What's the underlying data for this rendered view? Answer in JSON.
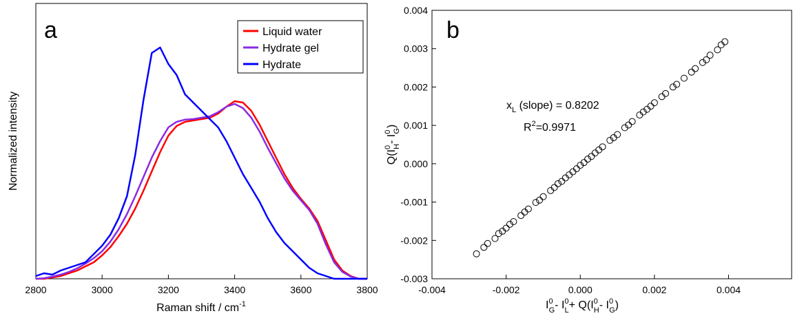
{
  "chart_data": [
    {
      "type": "line",
      "label": "a",
      "xlabel": [
        "Raman shift  /  cm",
        "-1"
      ],
      "ylabel": "Normalized intensity",
      "x": [
        2800,
        2825,
        2850,
        2875,
        2900,
        2925,
        2950,
        2975,
        3000,
        3025,
        3050,
        3075,
        3100,
        3125,
        3150,
        3175,
        3200,
        3225,
        3250,
        3275,
        3300,
        3325,
        3350,
        3375,
        3400,
        3425,
        3450,
        3475,
        3500,
        3525,
        3550,
        3575,
        3600,
        3625,
        3650,
        3675,
        3700,
        3725,
        3750,
        3775,
        3800
      ],
      "xlim": [
        2800,
        3800
      ],
      "xticks": [
        2800,
        3000,
        3200,
        3400,
        3600,
        3800
      ],
      "ylim": [
        0,
        1
      ],
      "legend": "upper right",
      "series": [
        {
          "name": "Liquid water",
          "color": "#ff0000",
          "values": [
            0,
            0,
            0.005,
            0.01,
            0.02,
            0.03,
            0.045,
            0.06,
            0.085,
            0.115,
            0.155,
            0.2,
            0.255,
            0.32,
            0.39,
            0.46,
            0.52,
            0.555,
            0.57,
            0.575,
            0.58,
            0.585,
            0.6,
            0.625,
            0.645,
            0.64,
            0.61,
            0.56,
            0.5,
            0.44,
            0.38,
            0.33,
            0.29,
            0.255,
            0.21,
            0.14,
            0.07,
            0.03,
            0.01,
            0,
            0
          ]
        },
        {
          "name": "Hydrate gel",
          "color": "#8a2be2",
          "values": [
            0,
            0.002,
            0.008,
            0.015,
            0.025,
            0.038,
            0.055,
            0.075,
            0.1,
            0.135,
            0.18,
            0.235,
            0.3,
            0.37,
            0.44,
            0.5,
            0.55,
            0.57,
            0.578,
            0.58,
            0.585,
            0.59,
            0.605,
            0.625,
            0.635,
            0.62,
            0.585,
            0.535,
            0.475,
            0.42,
            0.365,
            0.32,
            0.285,
            0.25,
            0.2,
            0.125,
            0.06,
            0.025,
            0.008,
            0,
            0
          ]
        },
        {
          "name": "Hydrate",
          "color": "#0000ff",
          "values": [
            0.01,
            0.02,
            0.015,
            0.03,
            0.04,
            0.05,
            0.06,
            0.09,
            0.12,
            0.16,
            0.22,
            0.3,
            0.45,
            0.65,
            0.82,
            0.84,
            0.78,
            0.74,
            0.67,
            0.64,
            0.61,
            0.58,
            0.55,
            0.5,
            0.44,
            0.38,
            0.33,
            0.28,
            0.22,
            0.17,
            0.13,
            0.1,
            0.07,
            0.04,
            0.02,
            0.01,
            0,
            0,
            0,
            0,
            0
          ]
        }
      ]
    },
    {
      "type": "scatter",
      "label": "b",
      "xlabel": [
        "I",
        "0",
        "G",
        "- I",
        "0",
        "L",
        "+ Q(I",
        "0",
        "H",
        "- I",
        "0",
        "G",
        ")"
      ],
      "ylabel": [
        "Q(I",
        "0",
        "H",
        "- I",
        "0",
        "G",
        ")"
      ],
      "annotations": [
        [
          "x",
          "L",
          " (slope) = 0.8202"
        ],
        [
          "R",
          "2",
          "=0.9971"
        ]
      ],
      "xlim": [
        -0.004,
        0.0057
      ],
      "xticks": [
        -0.004,
        -0.002,
        {
          "value": 0,
          "label": "0.000"
        },
        0.002,
        0.004
      ],
      "ylim": [
        -0.003,
        0.004
      ],
      "yticks": [
        -0.003,
        -0.002,
        -0.001,
        {
          "value": 0,
          "label": "0.000"
        },
        0.001,
        0.002,
        0.003,
        0.004
      ],
      "color": "#000000",
      "x": [
        -0.0028,
        -0.0026,
        -0.0025,
        -0.0023,
        -0.0022,
        -0.0021,
        -0.002,
        -0.0019,
        -0.0018,
        -0.0016,
        -0.0015,
        -0.0014,
        -0.0012,
        -0.0011,
        -0.001,
        -0.0008,
        -0.0007,
        -0.0006,
        -0.0005,
        -0.0004,
        -0.0003,
        -0.0002,
        -0.0001,
        0,
        0.0001,
        0.0002,
        0.0003,
        0.0004,
        0.0005,
        0.0006,
        0.0008,
        0.0009,
        0.001,
        0.0012,
        0.0013,
        0.0014,
        0.0016,
        0.0017,
        0.0018,
        0.0019,
        0.002,
        0.0022,
        0.0023,
        0.0025,
        0.0026,
        0.0028,
        0.003,
        0.0031,
        0.0033,
        0.0034,
        0.0035,
        0.0037,
        0.0038,
        0.0039
      ],
      "values": [
        -0.00235,
        -0.00218,
        -0.00208,
        -0.00195,
        -0.00182,
        -0.00176,
        -0.00168,
        -0.00158,
        -0.00151,
        -0.00135,
        -0.00126,
        -0.00118,
        -0.00101,
        -0.00095,
        -0.00086,
        -0.0007,
        -0.00062,
        -0.00052,
        -0.00046,
        -0.00037,
        -0.00029,
        -0.00021,
        -0.00013,
        -4e-05,
        3e-05,
        0.00012,
        0.00019,
        0.00028,
        0.00036,
        0.00044,
        0.00061,
        0.00068,
        0.00076,
        0.00094,
        0.00101,
        0.0011,
        0.00127,
        0.00135,
        0.00142,
        0.0015,
        0.00159,
        0.00175,
        0.00183,
        0.002,
        0.00207,
        0.00223,
        0.00239,
        0.00248,
        0.00264,
        0.00271,
        0.00283,
        0.00297,
        0.0031,
        0.00318
      ]
    }
  ]
}
